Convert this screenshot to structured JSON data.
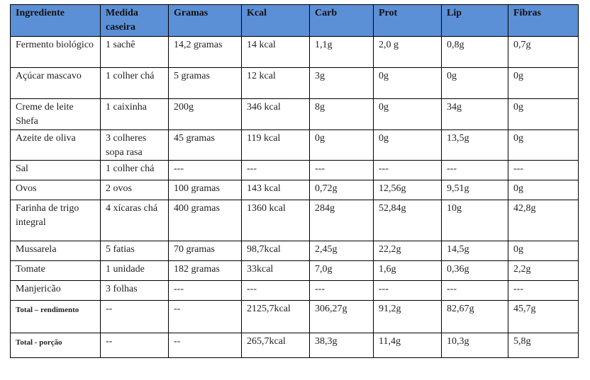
{
  "table": {
    "header": [
      "Ingrediente",
      "Medida caseira",
      "Gramas",
      "Kcal",
      "Carb",
      "Prot",
      "Lip",
      "Fibras"
    ],
    "rows": [
      [
        "Fermento biológico",
        "1 sachê",
        "14,2 gramas",
        "14 kcal",
        "1,1g",
        "2,0 g",
        "0,8g",
        "0,7g"
      ],
      [
        "Açúcar mascavo",
        "1 colher chá",
        "5 gramas",
        "12 kcal",
        "3g",
        "0g",
        "0g",
        "0g"
      ],
      [
        "Creme de leite Shefa",
        "1 caixinha",
        "200g",
        "346 kcal",
        "8g",
        "0g",
        "34g",
        "0g"
      ],
      [
        "Azeite de oliva",
        "3 colheres sopa rasa",
        "45 gramas",
        "119 kcal",
        "0g",
        "0g",
        "13,5g",
        "0g"
      ],
      [
        "Sal",
        "1 colher chá",
        "---",
        "---",
        "---",
        "---",
        "---",
        "---"
      ],
      [
        "Ovos",
        "2 ovos",
        "100 gramas",
        "143 kcal",
        "0,72g",
        "12,56g",
        "9,51g",
        "0g"
      ],
      [
        "Farinha de trigo integral",
        "4 xícaras chá",
        "400 gramas",
        "1360 kcal",
        "284g",
        "52,84g",
        "10g",
        "42,8g"
      ],
      [
        "Mussarela",
        "5 fatias",
        "70 gramas",
        "98,7kcal",
        "2,45g",
        "22,2g",
        "14,5g",
        "0g"
      ],
      [
        "Tomate",
        "1 unidade",
        "182 gramas",
        "33kcal",
        "7,0g",
        "1,6g",
        "0,36g",
        "2,2g"
      ],
      [
        "Manjericão",
        "3 folhas",
        "---",
        "---",
        "---",
        "---",
        "---",
        "---"
      ],
      [
        "Total – rendimento",
        "--",
        "--",
        "2125,7kcal",
        "306,27g",
        "91,2g",
        "82,67g",
        "45,7g"
      ],
      [
        "Total - porção",
        "--",
        "--",
        "265,7kcal",
        "38,3g",
        "11,4g",
        "10,3g",
        "5,8g"
      ]
    ]
  }
}
